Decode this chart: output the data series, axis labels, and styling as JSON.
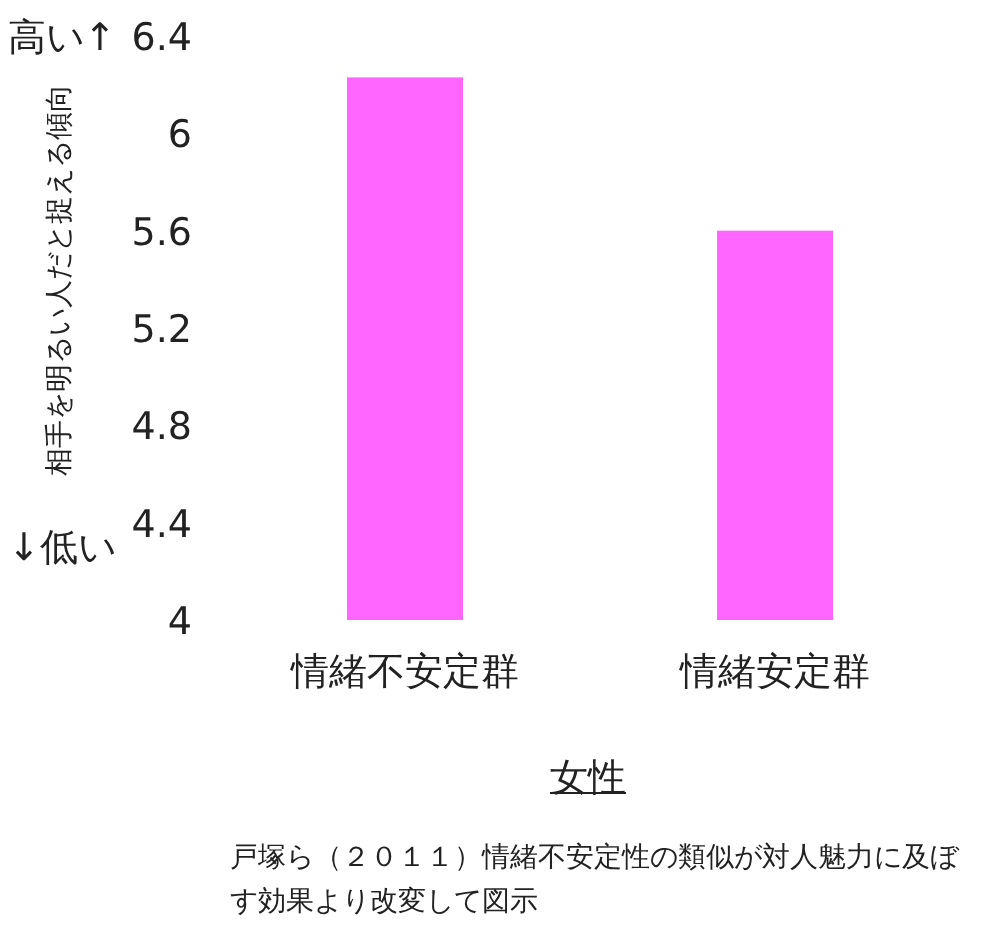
{
  "chart_data": {
    "type": "bar",
    "categories": [
      "情緒不安定群",
      "情緒安定群"
    ],
    "values": [
      6.23,
      5.6
    ],
    "color": "#ff66ff",
    "ylim": [
      4,
      6.4
    ],
    "yticks": [
      4,
      4.4,
      4.8,
      5.2,
      5.6,
      6,
      6.4
    ],
    "grid": false,
    "xlabel": "女性",
    "ylabel": "相手を明るい人だと捉える傾向",
    "annotations": [
      "高い↑",
      "↓低い",
      "戸塚ら（２０１１）情緒不安定性の類似が対人魅力に及ぼす効果より改変して図示"
    ]
  }
}
